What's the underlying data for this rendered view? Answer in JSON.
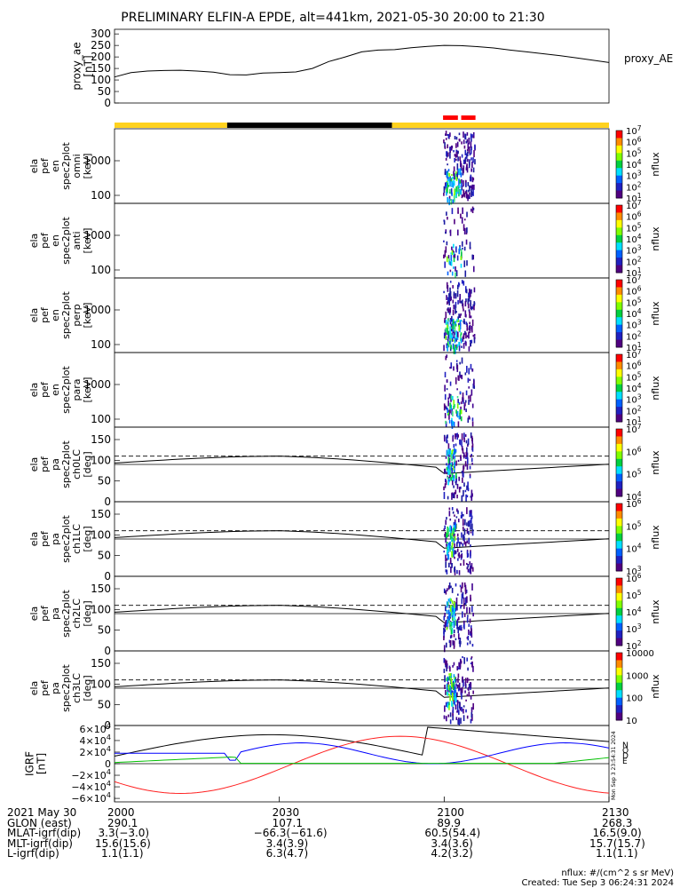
{
  "title": "PRELIMINARY ELFIN-A EPDE, alt=441km, 2021-05-30 20:00 to 21:30",
  "colors": {
    "bar_science": "#ffd21e",
    "bar_gap": "#000000",
    "bar_mark": "#ff0000",
    "line": "#000000",
    "N": "#000000",
    "O": "#ff2020",
    "D": "#0000ff",
    "E": "#00c000"
  },
  "proxy_ae": {
    "ylabel": [
      "proxy_ae",
      "[nT]"
    ],
    "right_label": "proxy_AE",
    "yticks": [
      0,
      50,
      100,
      150,
      200,
      250,
      300
    ],
    "ylim": [
      0,
      320
    ],
    "x": [
      0,
      3,
      6,
      9,
      12,
      15,
      18,
      21,
      24,
      27,
      30,
      33,
      36,
      39,
      42,
      45,
      48,
      51,
      54,
      57,
      60,
      63,
      66,
      69,
      72,
      75,
      78,
      81,
      84,
      87,
      90
    ],
    "y": [
      113,
      132,
      139,
      141,
      142,
      139,
      134,
      123,
      122,
      130,
      132,
      135,
      150,
      180,
      200,
      222,
      230,
      232,
      240,
      246,
      250,
      249,
      245,
      239,
      230,
      222,
      214,
      206,
      196,
      186,
      176
    ]
  },
  "status_bar": {
    "segments": [
      [
        0,
        20.5,
        "science"
      ],
      [
        20.5,
        50.5,
        "gap"
      ],
      [
        50.5,
        90,
        "science"
      ]
    ],
    "marks": [
      [
        59.8,
        62.5
      ],
      [
        63.1,
        65.7
      ]
    ]
  },
  "spectrograms": [
    {
      "name": "omni",
      "ylabel": [
        "ela",
        "pef",
        "en",
        "spec2plot",
        "omni",
        "[keV]"
      ],
      "cb_labels": [
        "10^7",
        "10^6",
        "10^5",
        "10^4",
        "10^3",
        "10^2",
        "10^1"
      ],
      "cb_title": "nflux",
      "yticks": [
        "1000",
        "100"
      ]
    },
    {
      "name": "anti",
      "ylabel": [
        "ela",
        "pef",
        "en",
        "spec2plot",
        "anti",
        "[keV]"
      ],
      "cb_labels": [
        "10^7",
        "10^6",
        "10^5",
        "10^4",
        "10^3",
        "10^2",
        "10^1"
      ],
      "cb_title": "nflux",
      "yticks": [
        "1000",
        "100"
      ]
    },
    {
      "name": "perp",
      "ylabel": [
        "ela",
        "pef",
        "en",
        "spec2plot",
        "perp",
        "[keV]"
      ],
      "cb_labels": [
        "10^7",
        "10^6",
        "10^5",
        "10^4",
        "10^3",
        "10^2",
        "10^1"
      ],
      "cb_title": "nflux",
      "yticks": [
        "1000",
        "100"
      ]
    },
    {
      "name": "para",
      "ylabel": [
        "ela",
        "pef",
        "en",
        "spec2plot",
        "para",
        "[keV]"
      ],
      "cb_labels": [
        "10^7",
        "10^6",
        "10^5",
        "10^4",
        "10^3",
        "10^2",
        "10^1"
      ],
      "cb_title": "nflux",
      "yticks": [
        "1000",
        "100"
      ]
    }
  ],
  "pitch_panels": [
    {
      "name": "ch0LC",
      "ylabel": [
        "ela",
        "pef",
        "pa",
        "spec2plot",
        "ch0LC",
        "[deg]"
      ],
      "cb_labels": [
        "10^7",
        "10^6",
        "10^5",
        "10^4"
      ],
      "cb_title": "nflux"
    },
    {
      "name": "ch1LC",
      "ylabel": [
        "ela",
        "pef",
        "pa",
        "spec2plot",
        "ch1LC",
        "[deg]"
      ],
      "cb_labels": [
        "10^6",
        "10^5",
        "10^4",
        "10^3"
      ],
      "cb_title": "nflux"
    },
    {
      "name": "ch2LC",
      "ylabel": [
        "ela",
        "pef",
        "pa",
        "spec2plot",
        "ch2LC",
        "[deg]"
      ],
      "cb_labels": [
        "10^6",
        "10^5",
        "10^4",
        "10^3",
        "10^2"
      ],
      "cb_title": "nflux"
    },
    {
      "name": "ch3LC",
      "ylabel": [
        "ela",
        "pef",
        "pa",
        "spec2plot",
        "ch3LC",
        "[deg]"
      ],
      "cb_labels": [
        "10000",
        "1000",
        "100",
        "10"
      ],
      "cb_title": "nflux"
    }
  ],
  "pitch_yticks": [
    0,
    50,
    100,
    150
  ],
  "igrf": {
    "ylabel": [
      "IGRF",
      "[nT]"
    ],
    "yticks": [
      "6×10^4",
      "4×10^4",
      "2×10^4",
      "0",
      "−2×10^4",
      "−4×10^4",
      "−6×10^4"
    ],
    "legend": [
      "N",
      "O",
      "D",
      "E"
    ],
    "stamp": "Mon Sep  3 23:54:31 2024"
  },
  "footer": {
    "rows": [
      {
        "label": "2021 May 30",
        "values": [
          "2000",
          "2030",
          "2100",
          "2130"
        ]
      },
      {
        "label": "GLON (east)",
        "values": [
          "290.1",
          "107.1",
          "89.9",
          "268.3"
        ]
      },
      {
        "label": "MLAT-igrf(dip)",
        "values": [
          "3.3(−3.0)",
          "−66.3(−61.6)",
          "60.5(54.4)",
          "16.5(9.0)"
        ]
      },
      {
        "label": "MLT-igrf(dip)",
        "values": [
          "15.6(15.6)",
          "3.4(3.9)",
          "3.4(3.6)",
          "15.7(15.7)"
        ]
      },
      {
        "label": "L-igrf(dip)",
        "values": [
          "1.1(1.1)",
          "6.3(4.7)",
          "4.2(3.2)",
          "1.1(1.1)"
        ]
      }
    ],
    "units_note": "nflux: #/(cm^2 s sr MeV)",
    "created": "Created: Tue Sep  3 06:24:31 2024"
  }
}
